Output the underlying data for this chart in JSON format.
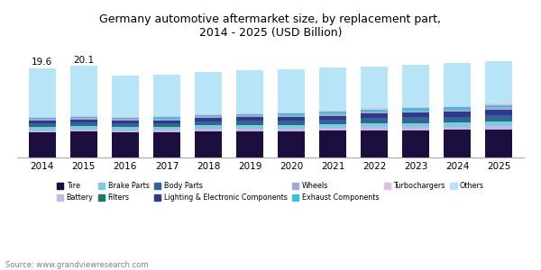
{
  "title": "Germany automotive aftermarket size, by replacement part,\n2014 - 2025 (USD Billion)",
  "years": [
    2014,
    2015,
    2016,
    2017,
    2018,
    2019,
    2020,
    2021,
    2022,
    2023,
    2024,
    2025
  ],
  "categories": [
    "Tire",
    "Battery",
    "Brake Parts",
    "Filters",
    "Body Parts",
    "Lighting & Electronic Components",
    "Wheels",
    "Exhaust Components",
    "Turbochargers",
    "Others"
  ],
  "colors": [
    "#1c0f3f",
    "#c8b8e0",
    "#7ec8e8",
    "#1e7a68",
    "#3a5fa0",
    "#2e3a8c",
    "#a0aad0",
    "#40c0d0",
    "#dbbde8",
    "#b8e4f8"
  ],
  "data": {
    "Tire": [
      5.5,
      5.7,
      5.5,
      5.6,
      5.7,
      5.8,
      5.8,
      5.9,
      6.0,
      6.0,
      6.1,
      6.2
    ],
    "Battery": [
      0.5,
      0.5,
      0.5,
      0.5,
      0.6,
      0.6,
      0.6,
      0.6,
      0.7,
      0.7,
      0.7,
      0.8
    ],
    "Brake Parts": [
      0.7,
      0.7,
      0.7,
      0.7,
      0.8,
      0.8,
      0.8,
      0.8,
      0.9,
      0.9,
      0.9,
      1.0
    ],
    "Filters": [
      0.3,
      0.3,
      0.3,
      0.3,
      0.3,
      0.3,
      0.3,
      0.3,
      0.3,
      0.4,
      0.4,
      0.4
    ],
    "Body Parts": [
      0.5,
      0.5,
      0.5,
      0.5,
      0.6,
      0.6,
      0.7,
      0.7,
      0.8,
      0.9,
      0.9,
      1.0
    ],
    "Lighting & Electronic Components": [
      0.6,
      0.6,
      0.6,
      0.6,
      0.7,
      0.8,
      0.8,
      0.9,
      1.0,
      1.0,
      1.1,
      1.2
    ],
    "Wheels": [
      0.4,
      0.4,
      0.4,
      0.4,
      0.4,
      0.4,
      0.4,
      0.5,
      0.5,
      0.5,
      0.5,
      0.5
    ],
    "Exhaust Components": [
      0.3,
      0.3,
      0.3,
      0.3,
      0.3,
      0.3,
      0.3,
      0.4,
      0.4,
      0.4,
      0.4,
      0.4
    ],
    "Turbochargers": [
      0.2,
      0.2,
      0.2,
      0.2,
      0.2,
      0.2,
      0.2,
      0.2,
      0.2,
      0.3,
      0.3,
      0.3
    ],
    "Others": [
      10.6,
      11.0,
      9.0,
      9.0,
      9.2,
      9.3,
      9.4,
      9.4,
      9.2,
      9.3,
      9.4,
      9.4
    ]
  },
  "totals": [
    19.6,
    20.1,
    18.0,
    18.1,
    18.8,
    19.1,
    19.3,
    19.7,
    20.0,
    20.4,
    20.7,
    21.2
  ],
  "annotation_years": [
    2014,
    2015
  ],
  "annotation_values": [
    "19.6",
    "20.1"
  ],
  "source": "Source: www.grandviewresearch.com",
  "background_color": "#ffffff",
  "plot_bg": "#ffffff",
  "bar_width": 0.65,
  "ylim": [
    0,
    25
  ],
  "figsize": [
    6.0,
    3.0
  ],
  "dpi": 100
}
